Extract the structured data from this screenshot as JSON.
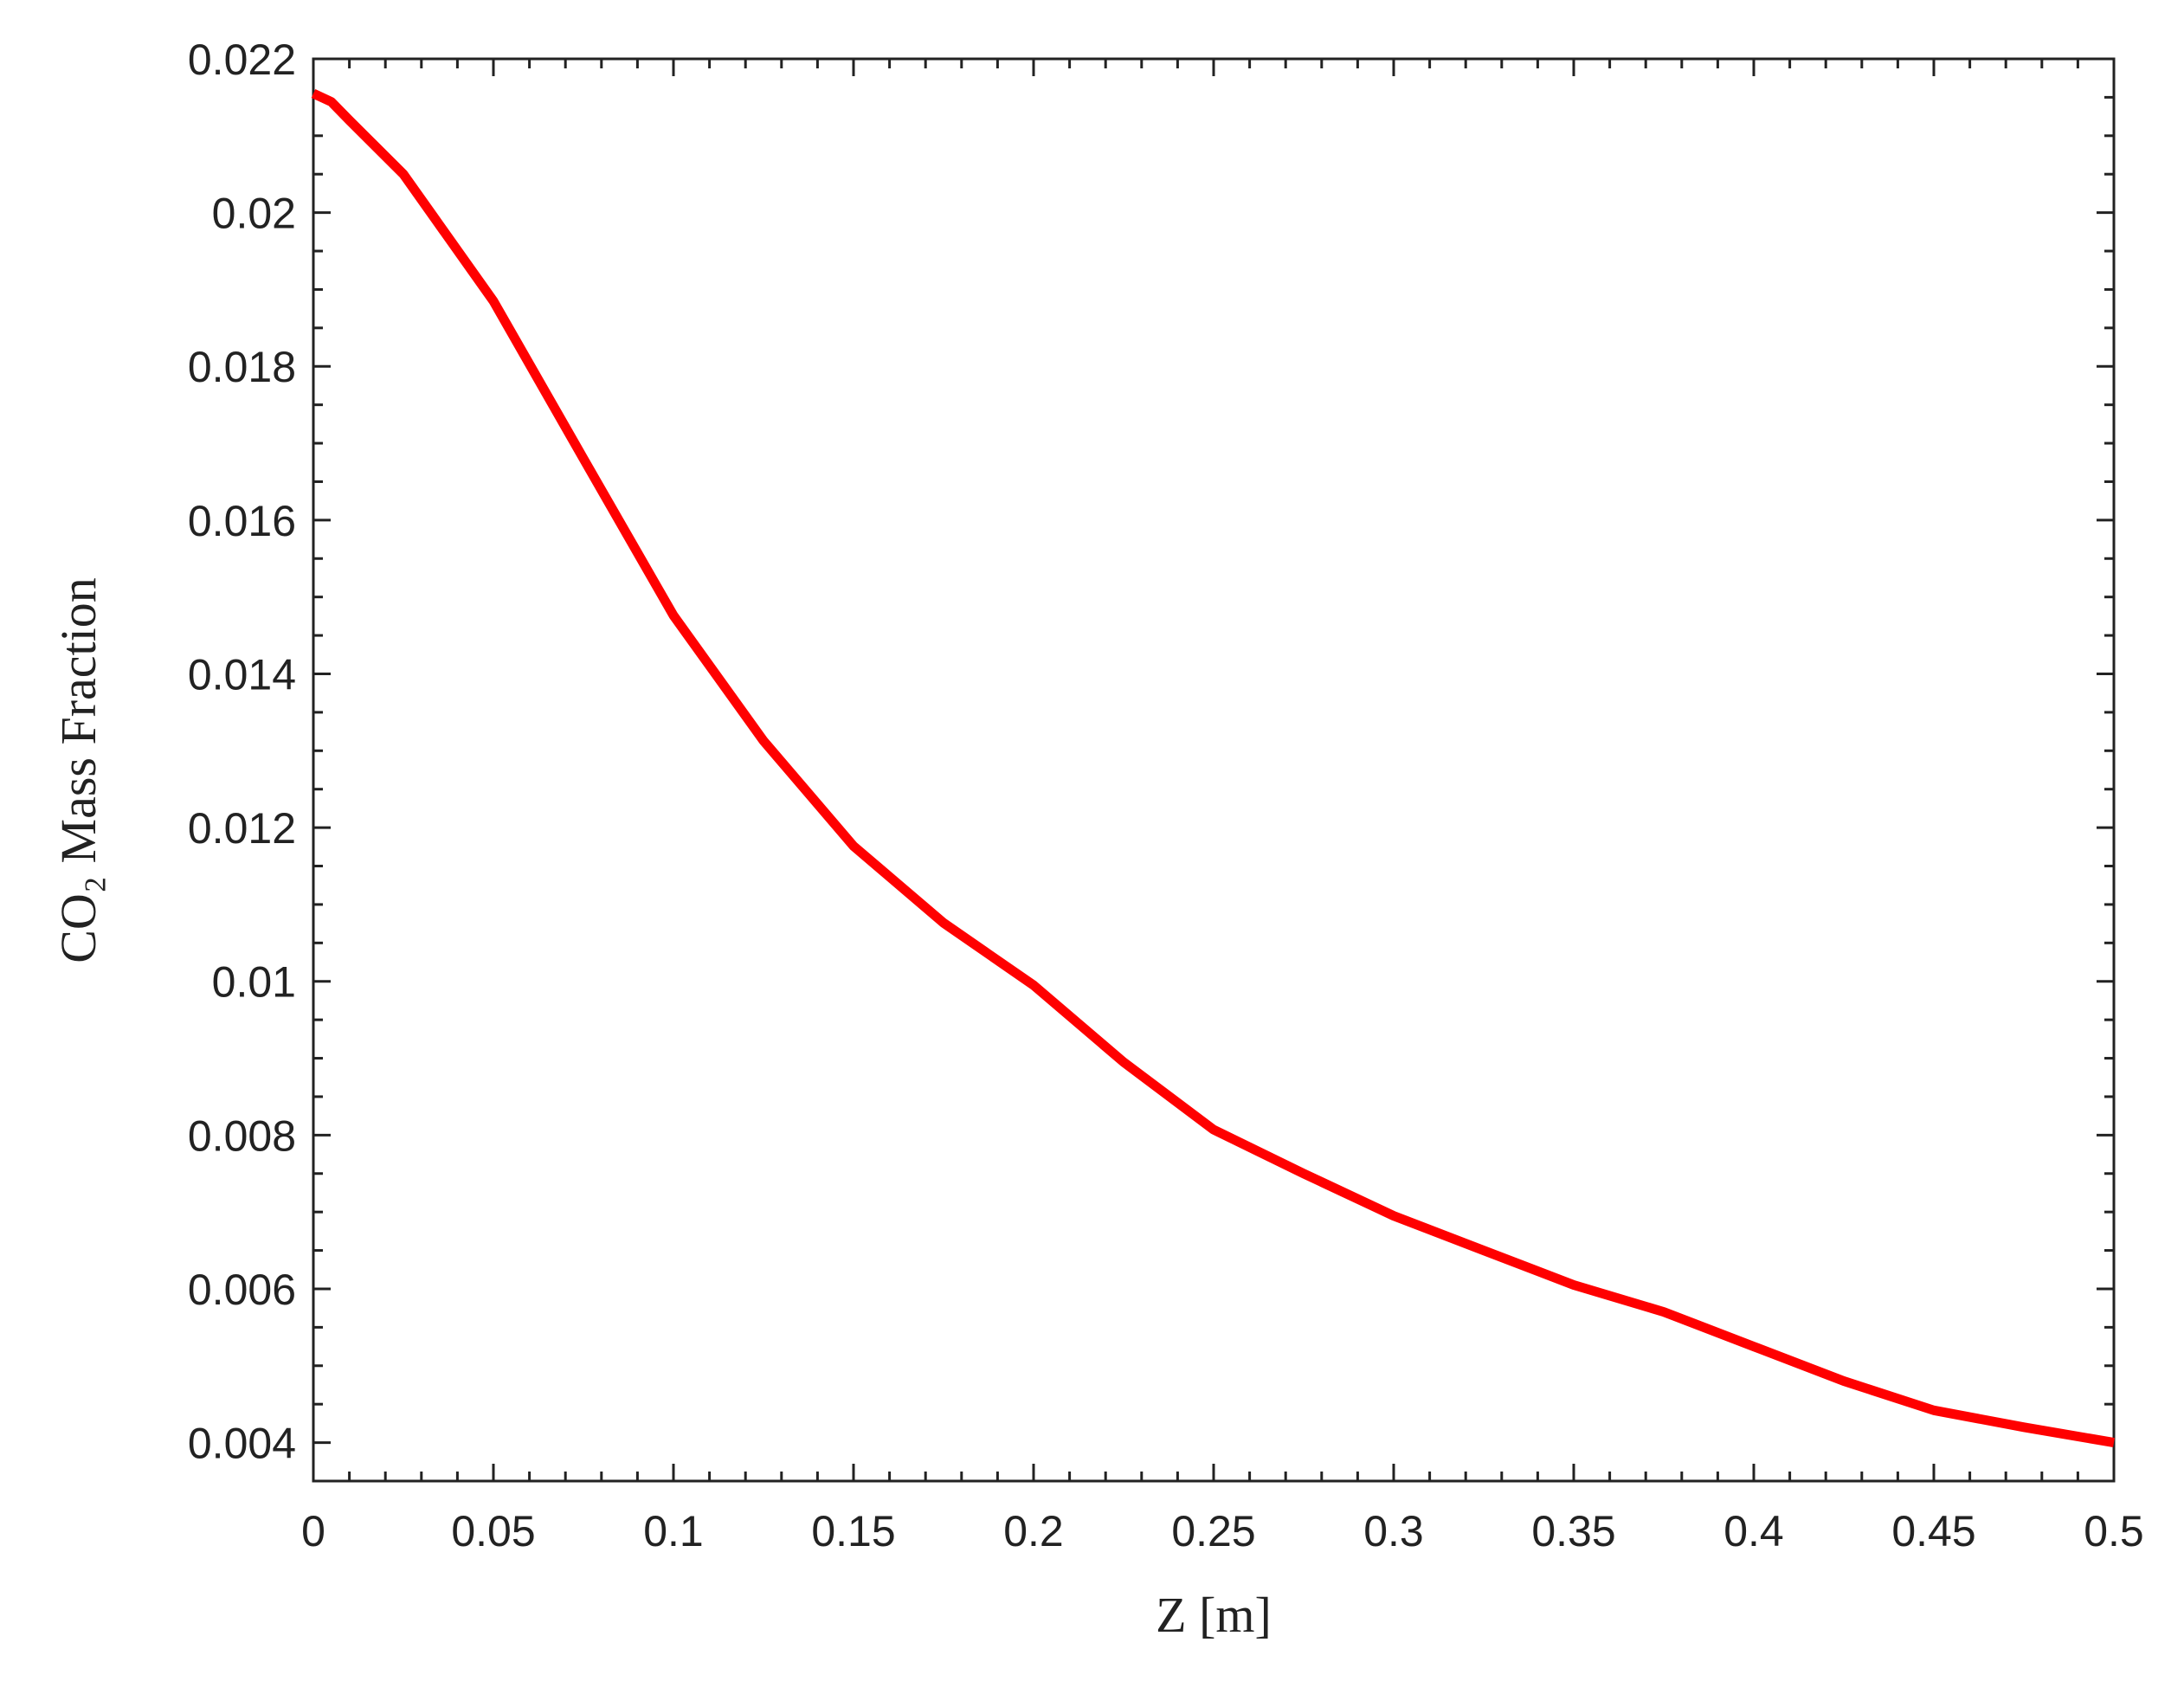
{
  "chart_data": {
    "type": "line",
    "xlabel": "Z [m]",
    "ylabel": "CO₂ Mass Fraction",
    "x": [
      0,
      0.005,
      0.01,
      0.025,
      0.05,
      0.075,
      0.1,
      0.125,
      0.15,
      0.175,
      0.2,
      0.225,
      0.25,
      0.275,
      0.3,
      0.325,
      0.35,
      0.375,
      0.4,
      0.425,
      0.45,
      0.475,
      0.5
    ],
    "series": [
      {
        "color": "#ff0000",
        "values": [
          0.02155,
          0.02144,
          0.0212,
          0.0205,
          0.01885,
          0.0168,
          0.01476,
          0.01313,
          0.01176,
          0.01076,
          0.00995,
          0.00895,
          0.00807,
          0.0075,
          0.00695,
          0.0065,
          0.00605,
          0.0057,
          0.00525,
          0.0048,
          0.00442,
          0.0042,
          0.004
        ]
      }
    ],
    "xlim": [
      0,
      0.5
    ],
    "ylim": [
      0.0035,
      0.022
    ],
    "xticks": [
      0,
      0.05,
      0.1,
      0.15,
      0.2,
      0.25,
      0.3,
      0.35,
      0.4,
      0.45,
      0.5
    ],
    "yticks": [
      0.004,
      0.006,
      0.008,
      0.01,
      0.012,
      0.014,
      0.016,
      0.018,
      0.02,
      0.022
    ],
    "xminorticks": [
      0.01,
      0.02,
      0.03,
      0.04,
      0.06,
      0.07,
      0.08,
      0.09,
      0.11,
      0.12,
      0.13,
      0.14,
      0.16,
      0.17,
      0.18,
      0.19,
      0.21,
      0.22,
      0.23,
      0.24,
      0.26,
      0.27,
      0.28,
      0.29,
      0.31,
      0.32,
      0.33,
      0.34,
      0.36,
      0.37,
      0.38,
      0.39,
      0.41,
      0.42,
      0.43,
      0.44,
      0.46,
      0.47,
      0.48,
      0.49
    ],
    "yminorticks": [
      0.0035,
      0.0045,
      0.005,
      0.0055,
      0.0065,
      0.007,
      0.0075,
      0.0085,
      0.009,
      0.0095,
      0.0105,
      0.011,
      0.0115,
      0.0125,
      0.013,
      0.0135,
      0.0145,
      0.015,
      0.0155,
      0.0165,
      0.017,
      0.0175,
      0.0185,
      0.019,
      0.0195,
      0.0205,
      0.021,
      0.0215
    ],
    "grid": false
  }
}
